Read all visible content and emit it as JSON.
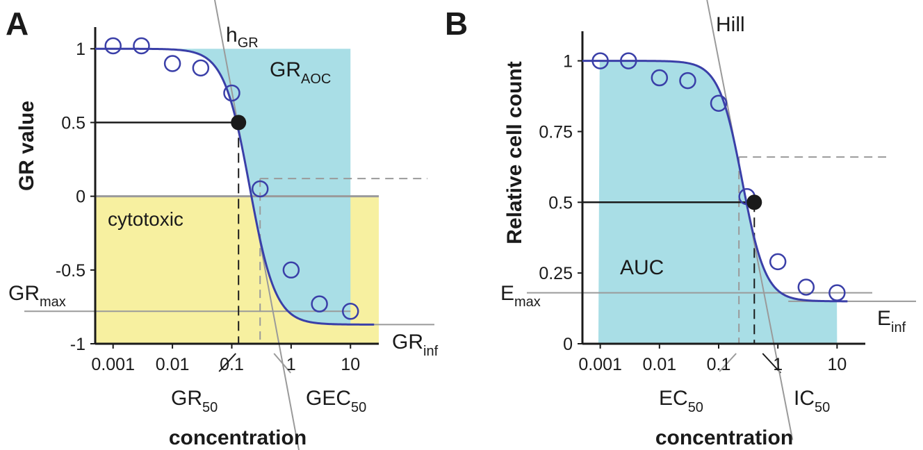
{
  "chart_data": [
    {
      "panel": "A",
      "type": "line",
      "x_scale": "log",
      "xlim": [
        0.0005,
        30
      ],
      "ylim": [
        -1,
        1.1
      ],
      "xlabel": "concentration",
      "ylabel": "GR value",
      "x_tick_labels": [
        "0.001",
        "0.01",
        "0.1",
        "1",
        "10"
      ],
      "x_ticks": [
        0.001,
        0.01,
        0.1,
        1,
        10
      ],
      "y_tick_labels": [
        "1",
        "0.5",
        "0",
        "-0.5",
        "-1"
      ],
      "y_ticks": [
        1,
        0.5,
        0,
        -0.5,
        -1
      ],
      "fit": {
        "top": 1,
        "bottom": -0.87,
        "ec50": 0.2,
        "hill": 2,
        "x_range": [
          0.0005,
          25
        ]
      },
      "points": {
        "x": [
          0.001,
          0.003,
          0.01,
          0.03,
          0.1,
          0.3,
          1,
          3,
          10
        ],
        "y": [
          1.02,
          1.02,
          0.9,
          0.87,
          0.7,
          0.05,
          -0.5,
          -0.73,
          -0.78
        ]
      },
      "marker": {
        "x": 0.13,
        "y": 0.5
      },
      "shaded_aoc_upper": 10,
      "cytotoxic_upper": 30,
      "labels": {
        "h": "h",
        "h_sub": "GR",
        "aoc": "GR",
        "aoc_sub": "AOC",
        "cytotoxic": "cytotoxic",
        "max": "GR",
        "max_sub": "max",
        "inf": "GR",
        "inf_sub": "inf",
        "c50": "GR",
        "c50_sub": "50",
        "ec50": "GEC",
        "ec50_sub": "50"
      },
      "gr_max": -0.78,
      "gr_inf": -0.87,
      "gec50_x": 0.3,
      "gec50_y": 0.12
    },
    {
      "panel": "B",
      "type": "line",
      "x_scale": "log",
      "xlim": [
        0.0005,
        30
      ],
      "ylim": [
        0,
        1.08
      ],
      "xlabel": "concentration",
      "ylabel": "Relative cell count",
      "x_tick_labels": [
        "0.001",
        "0.01",
        "0.1",
        "1",
        "10"
      ],
      "x_ticks": [
        0.001,
        0.01,
        0.1,
        1,
        10
      ],
      "y_tick_labels": [
        "1",
        "0.75",
        "0.5",
        "0.25",
        "0"
      ],
      "y_ticks": [
        1,
        0.75,
        0.5,
        0.25,
        0
      ],
      "fit": {
        "top": 1,
        "bottom": 0.15,
        "ec50": 0.25,
        "hill": 2.2,
        "x_range": [
          0.0005,
          15
        ]
      },
      "points": {
        "x": [
          0.001,
          0.003,
          0.01,
          0.03,
          0.1,
          0.3,
          1,
          3,
          10
        ],
        "y": [
          1.0,
          1.0,
          0.94,
          0.93,
          0.85,
          0.52,
          0.29,
          0.2,
          0.18
        ]
      },
      "marker": {
        "x": 0.4,
        "y": 0.5
      },
      "shaded_auc_range": [
        0.00093,
        10
      ],
      "labels": {
        "h": "Hill",
        "auc": "AUC",
        "max": "E",
        "max_sub": "max",
        "inf": "E",
        "inf_sub": "inf",
        "c50": "IC",
        "c50_sub": "50",
        "ec50": "EC",
        "ec50_sub": "50"
      },
      "e_max": 0.18,
      "e_inf": 0.15,
      "ec50_x": 0.22,
      "ec50_y": 0.66
    }
  ]
}
